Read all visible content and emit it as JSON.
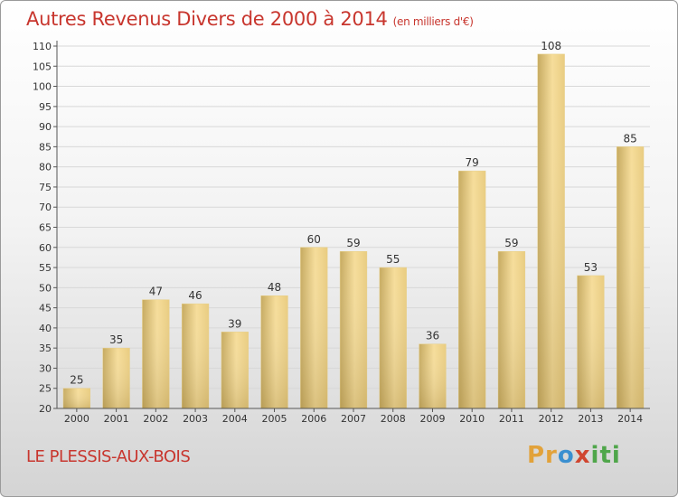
{
  "header": {
    "title": "Autres Revenus Divers de 2000 à 2014",
    "unit": "(en milliers d'€)"
  },
  "footer": {
    "location": "LE PLESSIS-AUX-BOIS",
    "logo": "Proxiti"
  },
  "colors": {
    "title": "#c8362e",
    "bar_light": "#f5dc98",
    "bar_dark": "#c4a85c"
  },
  "chart_data": {
    "type": "bar",
    "categories": [
      "2000",
      "2001",
      "2002",
      "2003",
      "2004",
      "2005",
      "2006",
      "2007",
      "2008",
      "2009",
      "2010",
      "2011",
      "2012",
      "2013",
      "2014"
    ],
    "values": [
      25,
      35,
      47,
      46,
      39,
      48,
      60,
      59,
      55,
      36,
      79,
      59,
      108,
      53,
      85
    ],
    "ylim": [
      20,
      110
    ],
    "yticks": [
      20,
      25,
      30,
      35,
      40,
      45,
      50,
      55,
      60,
      65,
      70,
      75,
      80,
      85,
      90,
      95,
      100,
      105,
      110
    ],
    "grid": true
  }
}
